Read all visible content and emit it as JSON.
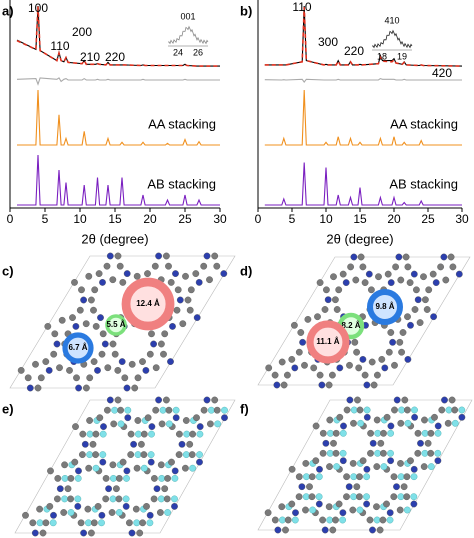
{
  "chart_data": [
    {
      "type": "line",
      "panel_label": "a)",
      "xlabel": "2θ (degree)",
      "x": [
        1,
        3.7,
        4.0,
        4.3,
        6.7,
        7.0,
        7.3,
        7.7,
        8.0,
        8.3,
        10.3,
        10.6,
        10.9,
        12.2,
        12.5,
        12.8,
        13.7,
        14.0,
        14.3,
        15.7,
        16.0,
        16.3,
        18.7,
        19.0,
        19.3,
        22.2,
        22.5,
        22.8,
        24.7,
        25.0,
        25.3,
        26.7,
        27.0,
        27.3,
        30
      ],
      "xlim": [
        0,
        30
      ],
      "xticks": [
        0,
        5,
        10,
        15,
        20,
        25,
        30
      ],
      "series": [
        {
          "color": "#000000",
          "values": [
            0.45,
            0.3,
            1.0,
            0.28,
            0.12,
            0.25,
            0.12,
            0.1,
            0.17,
            0.09,
            0.07,
            0.12,
            0.06,
            0.06,
            0.07,
            0.06,
            0.05,
            0.09,
            0.05,
            0.05,
            0.05,
            0.05,
            0.04,
            0.05,
            0.04,
            0.04,
            0.04,
            0.04,
            0.04,
            0.06,
            0.04,
            0.03,
            0.03,
            0.03,
            0.03
          ]
        },
        {
          "color": "#e0301e",
          "dashed": true,
          "values": [
            0.44,
            0.3,
            0.99,
            0.28,
            0.12,
            0.24,
            0.12,
            0.1,
            0.17,
            0.09,
            0.07,
            0.12,
            0.06,
            0.06,
            0.07,
            0.06,
            0.05,
            0.09,
            0.05,
            0.05,
            0.05,
            0.05,
            0.04,
            0.05,
            0.04,
            0.04,
            0.04,
            0.04,
            0.04,
            0.05,
            0.04,
            0.03,
            0.03,
            0.03,
            0.03
          ]
        },
        {
          "color": "#aaaaaa",
          "values": [
            0.1,
            0.2,
            -0.6,
            0.3,
            0.1,
            0.3,
            -0.2,
            0.1,
            0.2,
            0,
            0,
            0.2,
            0,
            0,
            0.1,
            0,
            0,
            0.1,
            0,
            0,
            0,
            0,
            0,
            0.1,
            0,
            0,
            0,
            0,
            0,
            0.1,
            0,
            0,
            0,
            0,
            0
          ]
        },
        {
          "name": "AA stacking",
          "color": "#f0901e",
          "values": [
            0,
            0,
            1.0,
            0,
            0,
            0.55,
            0,
            0,
            0.12,
            0,
            0,
            0.25,
            0,
            0,
            0,
            0,
            0,
            0.12,
            0,
            0,
            0.05,
            0,
            0,
            0.05,
            0,
            0,
            0.03,
            0,
            0,
            0.1,
            0,
            0,
            0.06,
            0,
            0
          ]
        },
        {
          "name": "AB stacking",
          "color": "#7a1fc0",
          "values": [
            0,
            0,
            1.0,
            0,
            0,
            0.7,
            0,
            0,
            0.45,
            0,
            0,
            0.4,
            0,
            0,
            0.55,
            0,
            0,
            0.4,
            0,
            0,
            0.55,
            0,
            0,
            0.2,
            0,
            0,
            0.1,
            0,
            0,
            0.2,
            0,
            0,
            0.1,
            0,
            0
          ]
        }
      ],
      "annotations": [
        "100",
        "110",
        "200",
        "210",
        "220"
      ],
      "inset": {
        "label": "001",
        "xticks": [
          24,
          26
        ]
      }
    },
    {
      "type": "line",
      "panel_label": "b)",
      "xlabel": "2θ (degree)",
      "x": [
        1,
        3.5,
        3.8,
        4.1,
        6.5,
        6.8,
        7.1,
        9.7,
        10.0,
        10.3,
        11.5,
        11.8,
        12.1,
        13.3,
        13.6,
        13.9,
        14.7,
        15.0,
        15.3,
        17.7,
        18.0,
        18.3,
        19.7,
        20.0,
        20.3,
        21.2,
        21.5,
        21.8,
        23.7,
        24.0,
        24.3,
        30
      ],
      "xlim": [
        0,
        30
      ],
      "xticks": [
        0,
        5,
        10,
        15,
        20,
        25,
        30
      ],
      "series": [
        {
          "color": "#000000",
          "values": [
            0.05,
            0.05,
            0.05,
            0.05,
            0.1,
            1.0,
            0.12,
            0.05,
            0.06,
            0.05,
            0.05,
            0.12,
            0.05,
            0.05,
            0.1,
            0.05,
            0.05,
            0.06,
            0.05,
            0.07,
            0.2,
            0.12,
            0.12,
            0.15,
            0.08,
            0.06,
            0.1,
            0.05,
            0.04,
            0.05,
            0.04,
            0.03
          ]
        },
        {
          "color": "#e0301e",
          "dashed": true,
          "values": [
            0.05,
            0.05,
            0.05,
            0.05,
            0.1,
            0.98,
            0.12,
            0.05,
            0.06,
            0.05,
            0.05,
            0.11,
            0.05,
            0.05,
            0.1,
            0.05,
            0.05,
            0.06,
            0.05,
            0.07,
            0.17,
            0.11,
            0.1,
            0.13,
            0.08,
            0.06,
            0.09,
            0.05,
            0.04,
            0.05,
            0.04,
            0.03
          ]
        },
        {
          "color": "#aaaaaa",
          "values": [
            0.05,
            0,
            0.05,
            0,
            0.1,
            -0.3,
            0.1,
            0,
            0,
            0,
            0,
            0.1,
            0,
            0,
            0,
            0,
            0,
            0,
            0,
            0,
            0.2,
            0.1,
            0.1,
            0.1,
            0,
            0,
            0.1,
            0,
            0,
            0,
            0,
            0
          ]
        },
        {
          "name": "AA stacking",
          "color": "#f0901e",
          "values": [
            0,
            0,
            0.12,
            0,
            0,
            1.0,
            0,
            0,
            0.05,
            0,
            0,
            0.15,
            0,
            0,
            0.12,
            0,
            0,
            0.05,
            0,
            0,
            0.12,
            0,
            0,
            0.15,
            0,
            0,
            0.05,
            0,
            0,
            0.08,
            0,
            0
          ]
        },
        {
          "name": "AB stacking",
          "color": "#7a1fc0",
          "values": [
            0,
            0,
            0.12,
            0,
            0,
            0.85,
            0,
            0,
            0.75,
            0,
            0,
            0.2,
            0,
            0,
            0.15,
            0,
            0,
            0.35,
            0,
            0,
            0.15,
            0,
            0,
            0.15,
            0,
            0,
            0.05,
            0,
            0,
            0.08,
            0,
            0
          ]
        }
      ],
      "annotations": [
        "110",
        "300",
        "220",
        "420"
      ],
      "inset": {
        "label": "410",
        "xticks": [
          18,
          19
        ]
      }
    }
  ],
  "structures": [
    {
      "panel_label": "c)",
      "pores": [
        "12.4 Å",
        "5.5 Å",
        "6.7 Å"
      ]
    },
    {
      "panel_label": "d)",
      "pores": [
        "9.8 Å",
        "8.2 Å",
        "11.1 Å"
      ]
    },
    {
      "panel_label": "e)"
    },
    {
      "panel_label": "f)"
    }
  ]
}
